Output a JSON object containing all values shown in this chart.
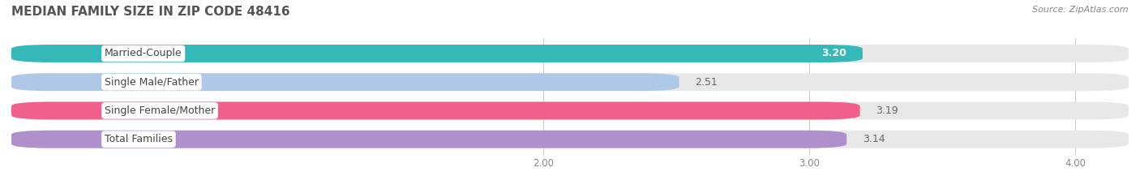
{
  "title": "MEDIAN FAMILY SIZE IN ZIP CODE 48416",
  "source": "Source: ZipAtlas.com",
  "categories": [
    "Married-Couple",
    "Single Male/Father",
    "Single Female/Mother",
    "Total Families"
  ],
  "values": [
    3.2,
    2.51,
    3.19,
    3.14
  ],
  "bar_colors": [
    "#35b8b8",
    "#b0c8e8",
    "#f0608a",
    "#b090cc"
  ],
  "bar_bg_color": "#e8e8e8",
  "xlim_min": 0.0,
  "xlim_max": 4.2,
  "xticks": [
    2.0,
    3.0,
    4.0
  ],
  "xtick_labels": [
    "2.00",
    "3.00",
    "4.00"
  ],
  "label_color": "#666666",
  "background_color": "#ffffff",
  "title_fontsize": 11,
  "bar_height": 0.62,
  "bar_gap": 0.38,
  "label_fontsize": 9,
  "value_fontsize": 9,
  "source_fontsize": 8
}
